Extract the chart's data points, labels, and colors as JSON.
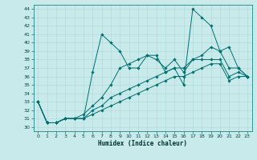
{
  "xlabel": "Humidex (Indice chaleur)",
  "xlim": [
    -0.5,
    23.5
  ],
  "ylim": [
    29.5,
    44.5
  ],
  "xticks": [
    0,
    1,
    2,
    3,
    4,
    5,
    6,
    7,
    8,
    9,
    10,
    11,
    12,
    13,
    14,
    15,
    16,
    17,
    18,
    19,
    20,
    21,
    22,
    23
  ],
  "yticks": [
    30,
    31,
    32,
    33,
    34,
    35,
    36,
    37,
    38,
    39,
    40,
    41,
    42,
    43,
    44
  ],
  "bg_color": "#c8eaea",
  "line_color": "#007070",
  "grid_color": "#b0d8d8",
  "line1": [
    33,
    30.5,
    30.5,
    31,
    31,
    31,
    36.5,
    41,
    40,
    39,
    37,
    37,
    38.5,
    38.5,
    36.5,
    37,
    35,
    44,
    43,
    42,
    39,
    39.5,
    37,
    36
  ],
  "line2": [
    33,
    30.5,
    30.5,
    31,
    31,
    31.5,
    32.5,
    33.5,
    35,
    37,
    37.5,
    38,
    38.5,
    38,
    37,
    38,
    36.5,
    38,
    38.5,
    39.5,
    39,
    37,
    37,
    36
  ],
  "line3": [
    33,
    30.5,
    30.5,
    31,
    31,
    31,
    32,
    32.5,
    33.5,
    34,
    34.5,
    35,
    35.5,
    36,
    36.5,
    37,
    37,
    38,
    38,
    38,
    38,
    36,
    36.5,
    36
  ],
  "line4": [
    33,
    30.5,
    30.5,
    31,
    31,
    31,
    31.5,
    32,
    32.5,
    33,
    33.5,
    34,
    34.5,
    35,
    35.5,
    36,
    36,
    36.5,
    37,
    37.5,
    37.5,
    35.5,
    36,
    36
  ]
}
